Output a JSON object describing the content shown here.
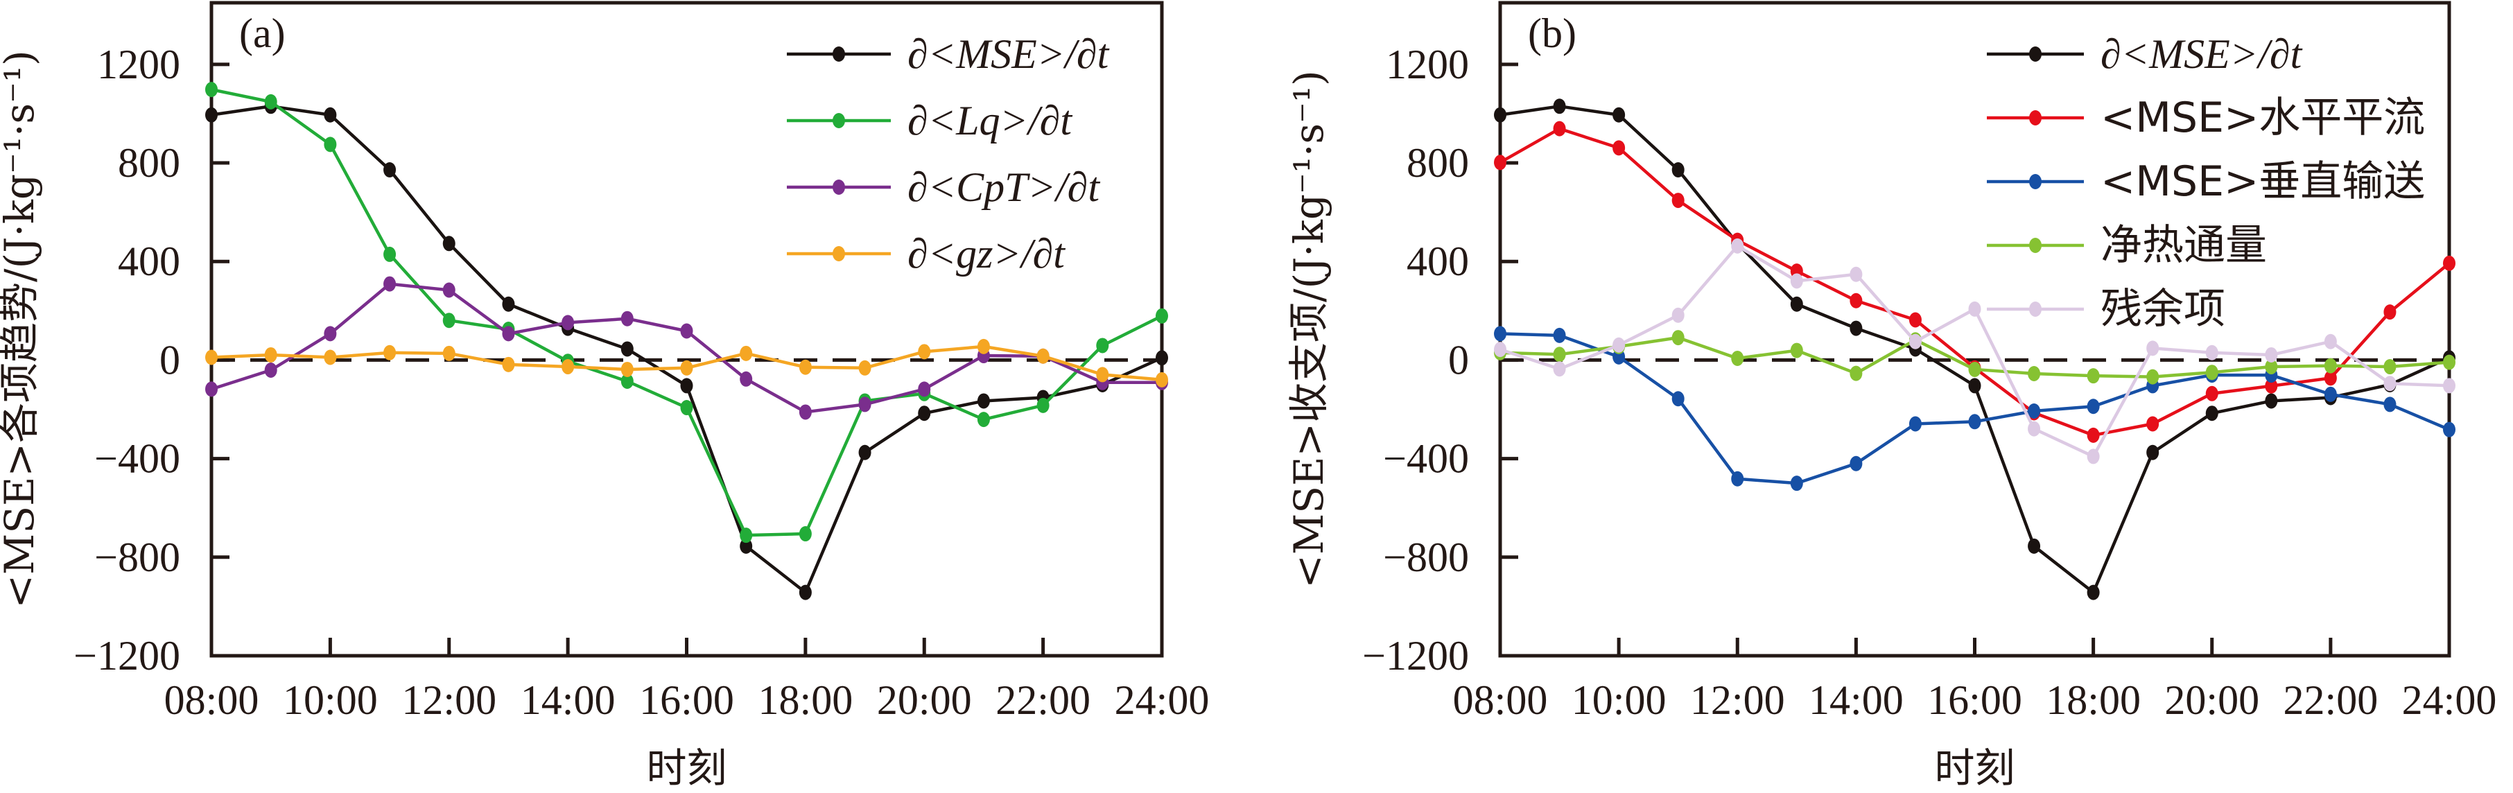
{
  "chart_data": [
    {
      "type": "line",
      "panel_label": "(a)",
      "xlabel": "时刻",
      "ylabel": "<MSE>各项趋势/(J·kg⁻¹·s⁻¹)",
      "x": [
        "08:00",
        "09:00",
        "10:00",
        "11:00",
        "12:00",
        "13:00",
        "14:00",
        "15:00",
        "16:00",
        "17:00",
        "18:00",
        "19:00",
        "20:00",
        "21:00",
        "22:00",
        "23:00",
        "24:00"
      ],
      "xticks": [
        "08:00",
        "10:00",
        "12:00",
        "14:00",
        "16:00",
        "18:00",
        "20:00",
        "22:00",
        "24:00"
      ],
      "yticks": [
        1200,
        800,
        400,
        0,
        -400,
        -800,
        -1200
      ],
      "ylim": [
        -1200,
        1450
      ],
      "reference_line": 0,
      "legend_position": "top-right",
      "series": [
        {
          "name": "∂<MSE>/∂t",
          "color": "#1a1311",
          "values": [
            995,
            1030,
            995,
            772,
            473,
            227,
            129,
            45,
            -104,
            -755,
            -943,
            -375,
            -216,
            -166,
            -152,
            -100,
            9
          ]
        },
        {
          "name": "∂<Lq>/∂t",
          "color": "#22ac38",
          "values": [
            1098,
            1048,
            875,
            429,
            161,
            125,
            -5,
            -86,
            -193,
            -711,
            -705,
            -166,
            -136,
            -241,
            -184,
            59,
            179
          ]
        },
        {
          "name": "∂<CpT>/∂t",
          "color": "#7a2e8d",
          "values": [
            -118,
            -41,
            107,
            309,
            284,
            107,
            152,
            168,
            118,
            -77,
            -211,
            -180,
            -118,
            18,
            16,
            -91,
            -91
          ]
        },
        {
          "name": "∂<gz>/∂t",
          "color": "#f5a623",
          "values": [
            11,
            21,
            11,
            30,
            27,
            -18,
            -27,
            -38,
            -32,
            27,
            -29,
            -32,
            34,
            55,
            16,
            -59,
            -80
          ]
        }
      ]
    },
    {
      "type": "line",
      "panel_label": "(b)",
      "xlabel": "时刻",
      "ylabel": "<MSE>收支项/(J·kg⁻¹·s⁻¹)",
      "x": [
        "08:00",
        "09:00",
        "10:00",
        "11:00",
        "12:00",
        "13:00",
        "14:00",
        "15:00",
        "16:00",
        "17:00",
        "18:00",
        "19:00",
        "20:00",
        "21:00",
        "22:00",
        "23:00",
        "24:00"
      ],
      "xticks": [
        "08:00",
        "10:00",
        "12:00",
        "14:00",
        "16:00",
        "18:00",
        "20:00",
        "22:00",
        "24:00"
      ],
      "yticks": [
        1200,
        800,
        400,
        0,
        -400,
        -800,
        -1200
      ],
      "ylim": [
        -1200,
        1450
      ],
      "reference_line": 0,
      "legend_position": "top-right",
      "series": [
        {
          "name": "∂<MSE>/∂t",
          "color": "#1a1311",
          "values": [
            995,
            1030,
            995,
            772,
            473,
            227,
            129,
            45,
            -104,
            -755,
            -943,
            -375,
            -216,
            -166,
            -152,
            -100,
            9
          ]
        },
        {
          "name": "<MSE>水平平流",
          "color": "#e60f1a",
          "values": [
            802,
            939,
            861,
            648,
            486,
            361,
            241,
            163,
            -32,
            -214,
            -305,
            -259,
            -136,
            -105,
            -73,
            195,
            393
          ]
        },
        {
          "name": "<MSE>垂直输送",
          "color": "#1750a5",
          "values": [
            107,
            100,
            13,
            -157,
            -482,
            -500,
            -420,
            -259,
            -250,
            -207,
            -188,
            -104,
            -61,
            -61,
            -139,
            -180,
            -282
          ]
        },
        {
          "name": "净热通量",
          "color": "#86c232",
          "values": [
            30,
            23,
            55,
            91,
            7,
            39,
            -54,
            82,
            -38,
            -55,
            -64,
            -68,
            -50,
            -27,
            -23,
            -27,
            -9
          ]
        },
        {
          "name": "残余项",
          "color": "#dcc9e3",
          "values": [
            43,
            -36,
            61,
            182,
            463,
            321,
            348,
            75,
            207,
            -279,
            -391,
            48,
            30,
            21,
            75,
            -95,
            -104
          ]
        }
      ]
    }
  ]
}
